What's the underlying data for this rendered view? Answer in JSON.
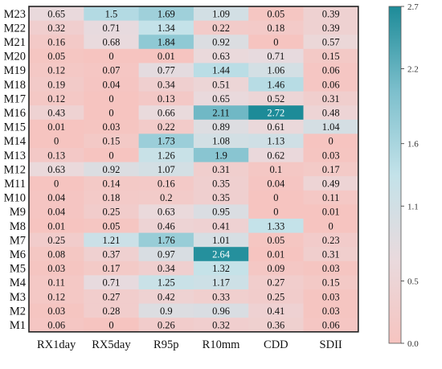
{
  "chart_data": {
    "type": "heatmap",
    "title": "",
    "xlabel": "",
    "ylabel": "",
    "x_categories": [
      "RX1day",
      "RX5day",
      "R95p",
      "R10mm",
      "CDD",
      "SDII"
    ],
    "y_categories": [
      "M23",
      "M22",
      "M21",
      "M20",
      "M19",
      "M18",
      "M17",
      "M16",
      "M15",
      "M14",
      "M13",
      "M12",
      "M11",
      "M10",
      "M9",
      "M8",
      "M7",
      "M6",
      "M5",
      "M4",
      "M3",
      "M2",
      "M1"
    ],
    "values": [
      [
        0.65,
        1.5,
        1.69,
        1.09,
        0.05,
        0.39
      ],
      [
        0.32,
        0.71,
        1.34,
        0.22,
        0.18,
        0.39
      ],
      [
        0.16,
        0.68,
        1.84,
        0.92,
        0,
        0.57
      ],
      [
        0.05,
        0,
        0.01,
        0.63,
        0.71,
        0.15
      ],
      [
        0.12,
        0.07,
        0.77,
        1.44,
        1.06,
        0.06
      ],
      [
        0.19,
        0.04,
        0.34,
        0.51,
        1.46,
        0.06
      ],
      [
        0.12,
        0,
        0.13,
        0.65,
        0.52,
        0.31
      ],
      [
        0.43,
        0,
        0.66,
        2.11,
        2.72,
        0.48
      ],
      [
        0.01,
        0.03,
        0.22,
        0.89,
        0.61,
        1.04
      ],
      [
        0,
        0.15,
        1.73,
        1.08,
        1.13,
        0
      ],
      [
        0.13,
        0,
        1.26,
        1.9,
        0.62,
        0.03
      ],
      [
        0.63,
        0.92,
        1.07,
        0.31,
        0.1,
        0.17
      ],
      [
        0,
        0.14,
        0.16,
        0.35,
        0.04,
        0.49
      ],
      [
        0.04,
        0.18,
        0.2,
        0.35,
        0,
        0.11
      ],
      [
        0.04,
        0.25,
        0.63,
        0.95,
        0,
        0.01
      ],
      [
        0.01,
        0.05,
        0.46,
        0.41,
        1.33,
        0
      ],
      [
        0.25,
        1.21,
        1.76,
        1.01,
        0.05,
        0.23
      ],
      [
        0.08,
        0.37,
        0.97,
        2.64,
        0.01,
        0.31
      ],
      [
        0.03,
        0.17,
        0.34,
        1.32,
        0.09,
        0.03
      ],
      [
        0.11,
        0.71,
        1.25,
        1.17,
        0.27,
        0.15
      ],
      [
        0.12,
        0.27,
        0.42,
        0.33,
        0.25,
        0.03
      ],
      [
        0.03,
        0.28,
        0.9,
        0.96,
        0.41,
        0.03
      ],
      [
        0.06,
        0,
        0.26,
        0.32,
        0.36,
        0.06
      ]
    ],
    "colorbar": {
      "min": 0,
      "max": 2.7,
      "ticks": [
        "2.7",
        "2.2",
        "1.6",
        "1.1",
        "0.5",
        "0.0"
      ],
      "tick_values": [
        2.7,
        2.2,
        1.6,
        1.1,
        0.5,
        0.0
      ],
      "colors": [
        "#f6c4c0",
        "#e9dadd",
        "#c3e2e9",
        "#7cbfcc",
        "#1d8b98"
      ]
    },
    "grid": false,
    "legend": "colorbar-right"
  }
}
